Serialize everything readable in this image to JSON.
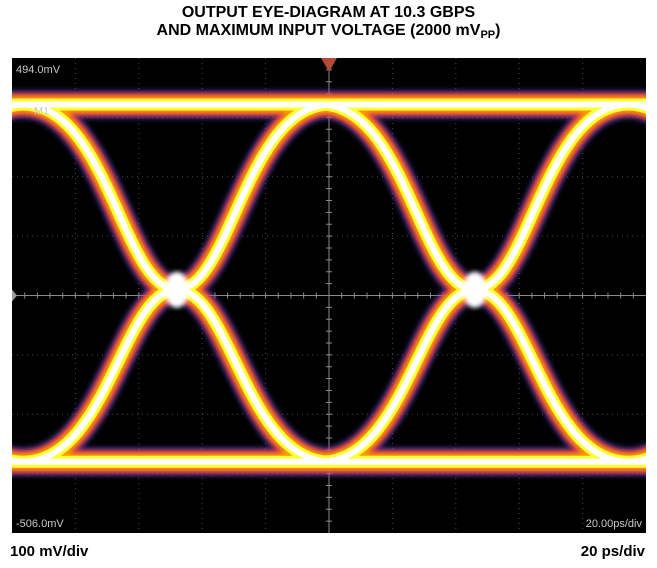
{
  "title_line1": "OUTPUT EYE-DIAGRAM AT 10.3 GBPS",
  "title_line2": "AND MAXIMUM INPUT VOLTAGE (2000 mV",
  "title_sub": "PP",
  "title_close": ")",
  "footer": {
    "vertical_scale": "100 mV/div",
    "horizontal_scale": "20 ps/div"
  },
  "chart_data": {
    "type": "line",
    "title": "OUTPUT EYE-DIAGRAM AT 10.3 GBPS AND MAXIMUM INPUT VOLTAGE (2000 mVPP)",
    "scope_labels": {
      "top": "494.0mV",
      "bottom": "-506.0mV",
      "timebase": "20.00ps/div",
      "marker": "M1"
    },
    "ylim_mV": [
      -506,
      494
    ],
    "xlim_ps": [
      0,
      200
    ],
    "grid": true,
    "levels_mV": {
      "high": 396,
      "low": -356,
      "crossing": 6
    },
    "crossings_ps": [
      52,
      146
    ],
    "bit_period_ps": 97,
    "colors": {
      "core": "#ffffff",
      "inner": "#ffff33",
      "mid": "#ff9900",
      "outer": "#dd2266",
      "halo": "#4466ff"
    }
  }
}
